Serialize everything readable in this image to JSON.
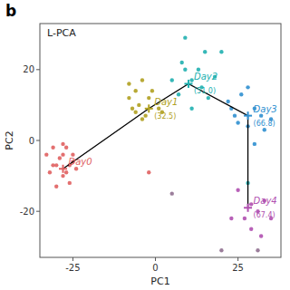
{
  "chart_data": {
    "type": "scatter",
    "title": "L-PCA",
    "panel_label": "b",
    "xlabel": "PC1",
    "ylabel": "PC2",
    "xlim": [
      -35,
      38
    ],
    "ylim": [
      -33,
      33
    ],
    "xticks": [
      -25,
      0,
      25
    ],
    "yticks": [
      -20,
      0,
      20
    ],
    "grid": false,
    "series": [
      {
        "name": "Day0",
        "color": "#e06060",
        "x": [
          -33,
          -31,
          -30,
          -28,
          -27,
          -28,
          -26,
          -25,
          -24,
          -26,
          -30,
          -32,
          -29,
          -27,
          -31,
          -28,
          -25
        ],
        "y": [
          -4,
          -2,
          -7,
          -1,
          -9,
          -4,
          -7,
          -4,
          -8,
          -12,
          -13,
          -9,
          -5,
          -2,
          -7,
          -10,
          -6
        ],
        "centroid": {
          "x": -28,
          "y": -8
        }
      },
      {
        "name": "Day1",
        "color": "#b0a020",
        "x": [
          -8,
          -6,
          -4,
          -2,
          1,
          -5,
          -7,
          -3,
          -1,
          -6,
          2,
          -8,
          -4
        ],
        "y": [
          16,
          14,
          17,
          12,
          9,
          10,
          9,
          7,
          14,
          8,
          8,
          12,
          6
        ],
        "centroid": {
          "x": -2,
          "y": 9
        },
        "annotation": "(32.5)"
      },
      {
        "name": "Day2",
        "color": "#20b0b0",
        "x": [
          9,
          15,
          20,
          8,
          13,
          11,
          18,
          7,
          14,
          11,
          5,
          9,
          16
        ],
        "y": [
          29,
          25,
          25,
          22,
          20,
          17,
          18,
          13,
          15,
          9,
          17,
          20,
          12
        ],
        "centroid": {
          "x": 10,
          "y": 16
        },
        "annotation": "(51.0)"
      },
      {
        "name": "Day3",
        "color": "#3090d0",
        "x": [
          22,
          25,
          30,
          32,
          28,
          26,
          33,
          24,
          30,
          28,
          35,
          23
        ],
        "y": [
          11,
          5,
          9,
          7,
          4,
          13,
          3,
          7,
          -1,
          15,
          6,
          9
        ],
        "centroid": {
          "x": 28,
          "y": 7
        },
        "annotation": "(66.8)"
      },
      {
        "name": "Day4",
        "color": "#b050b0",
        "x": [
          25,
          29,
          27,
          31,
          23,
          29,
          32,
          35,
          33
        ],
        "y": [
          -14,
          -18,
          -22,
          -20,
          -22,
          -25,
          -27,
          -22,
          -17
        ],
        "centroid": {
          "x": 28,
          "y": -19
        },
        "annotation": "(67.4)"
      }
    ],
    "extra_points": {
      "x": [
        -2,
        5,
        28,
        20,
        31
      ],
      "y": [
        -9,
        -15,
        -12,
        -31,
        -31
      ],
      "colors": [
        "#e06060",
        "#907090",
        "#20b0b0",
        "#907090",
        "#907090"
      ]
    }
  }
}
